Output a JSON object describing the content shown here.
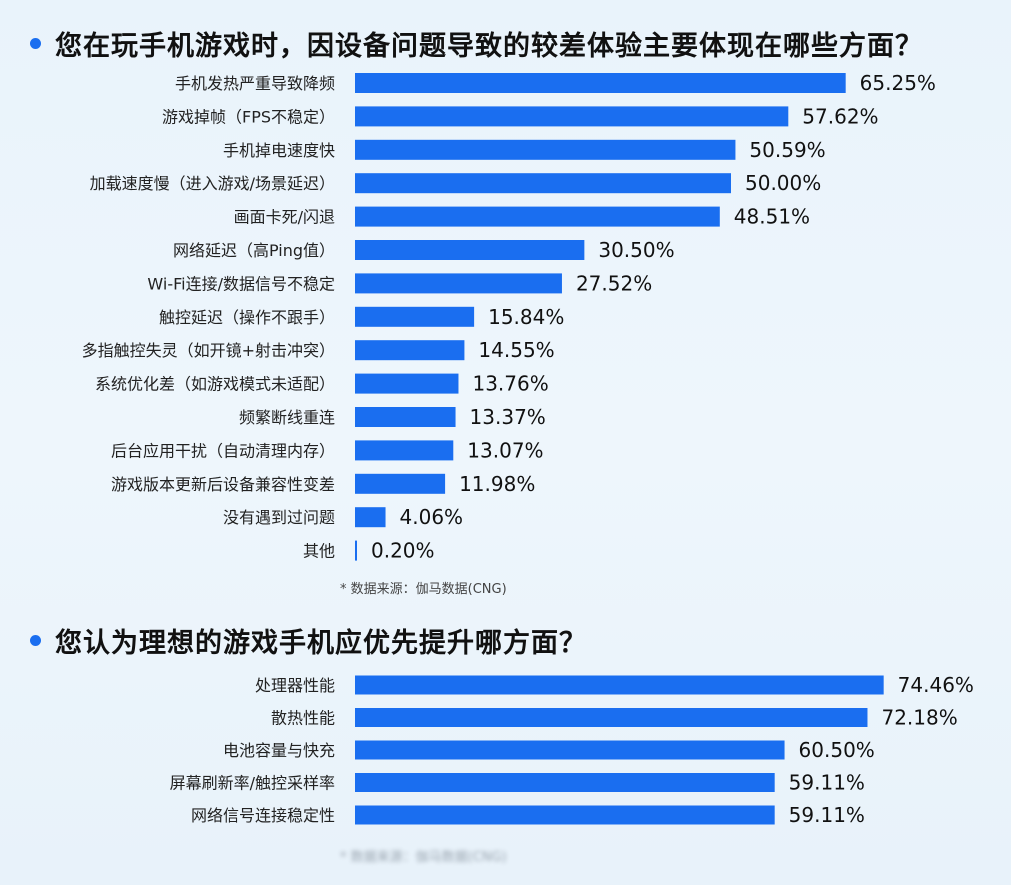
{
  "colors": {
    "bar": "#1a6ef0",
    "accent": "#1a6ef0"
  },
  "chart_data": [
    {
      "type": "bar",
      "orientation": "horizontal",
      "title": "您在玩手机游戏时，因设备问题导致的较差体验主要体现在哪些方面？",
      "categories": [
        "手机发热严重导致降频",
        "游戏掉帧（FPS不稳定）",
        "手机掉电速度快",
        "加载速度慢（进入游戏/场景延迟）",
        "画面卡死/闪退",
        "网络延迟（高Ping值）",
        "Wi-Fi连接/数据信号不稳定",
        "触控延迟（操作不跟手）",
        "多指触控失灵（如开镜+射击冲突）",
        "系统优化差（如游戏模式未适配）",
        "频繁断线重连",
        "后台应用干扰（自动清理内存）",
        "游戏版本更新后设备兼容性变差",
        "没有遇到过问题",
        "其他"
      ],
      "values": [
        65.25,
        57.62,
        50.59,
        50.0,
        48.51,
        30.5,
        27.52,
        15.84,
        14.55,
        13.76,
        13.37,
        13.07,
        11.98,
        4.06,
        0.2
      ],
      "value_labels": [
        "65.25%",
        "57.62%",
        "50.59%",
        "50.00%",
        "48.51%",
        "30.50%",
        "27.52%",
        "15.84%",
        "14.55%",
        "13.76%",
        "13.37%",
        "13.07%",
        "11.98%",
        "4.06%",
        "0.20%"
      ],
      "source": "* 数据来源：伽马数据(CNG)"
    },
    {
      "type": "bar",
      "orientation": "horizontal",
      "title": "您认为理想的游戏手机应优先提升哪方面？",
      "categories": [
        "处理器性能",
        "散热性能",
        "电池容量与快充",
        "屏幕刷新率/触控采样率",
        "网络信号连接稳定性"
      ],
      "values": [
        74.46,
        72.18,
        60.5,
        59.11,
        59.11
      ],
      "value_labels": [
        "74.46%",
        "72.18%",
        "60.50%",
        "59.11%",
        "59.11%"
      ]
    }
  ],
  "footnote": "* 数据来源：伽马数据(CNG)"
}
